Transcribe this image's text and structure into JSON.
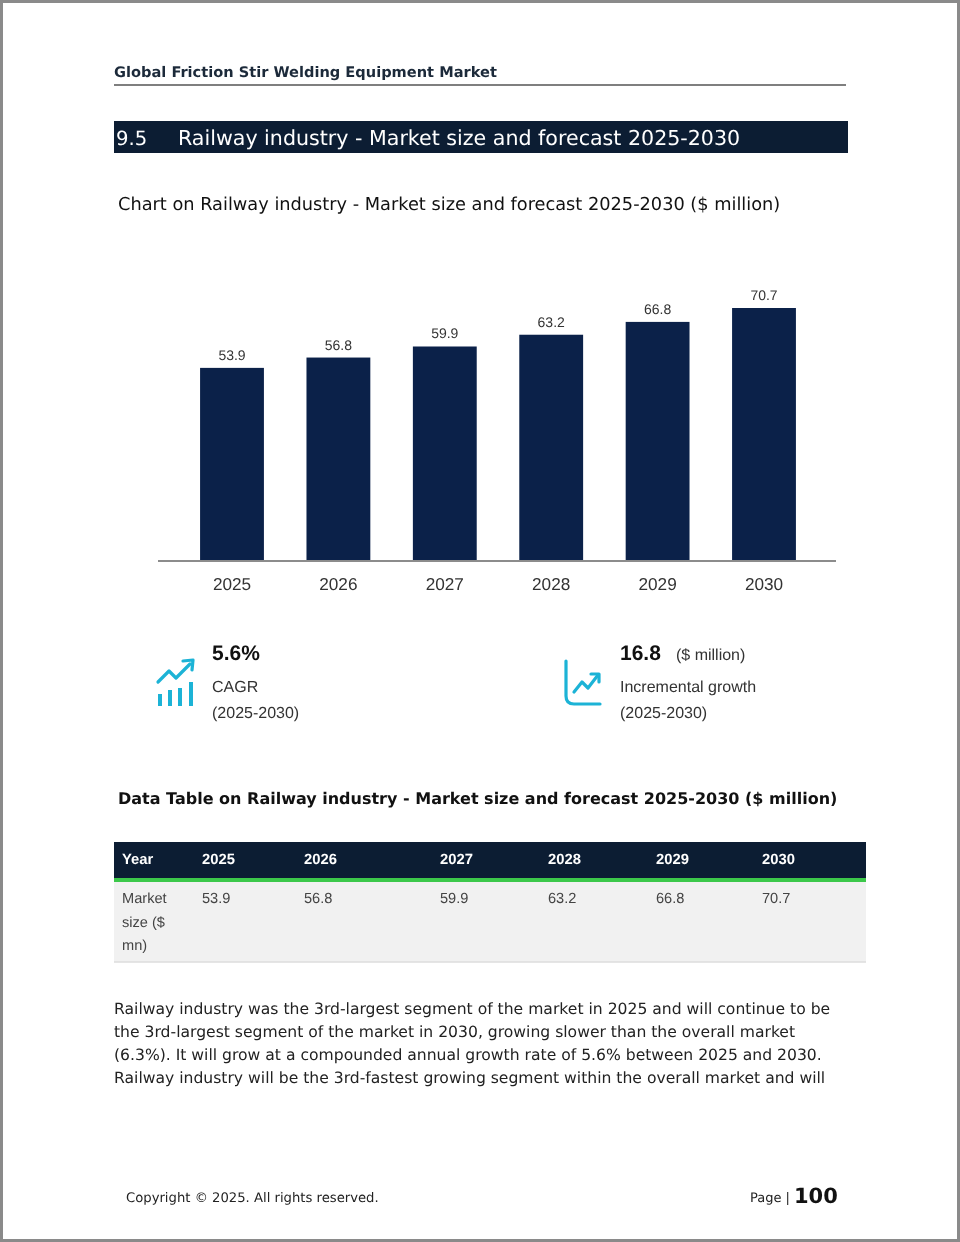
{
  "chart_data": {
    "type": "bar",
    "title": "Chart on Railway industry - Market size and forecast 2025-2030 ($ million)",
    "categories": [
      "2025",
      "2026",
      "2027",
      "2028",
      "2029",
      "2030"
    ],
    "values": [
      53.9,
      56.8,
      59.9,
      63.2,
      66.8,
      70.7
    ],
    "color": "#0b2149",
    "data_labels": true,
    "annotations": [
      "Global Friction Stir Welding Equipment Market",
      "9.5",
      "Railway industry - Market size and forecast 2025-2030",
      "5.6%",
      "CAGR",
      "(2025-2030)",
      "16.8",
      "($ million)",
      "Incremental growth",
      "(2025-2030)",
      "Data Table on Railway industry - Market size and forecast 2025-2030 ($ million)",
      "Year",
      "Market size ($ mn)",
      "53.9",
      "56.8",
      "59.9",
      "63.2",
      "66.8",
      "70.7",
      "Railway industry was the 3rd-largest segment of the market in 2025 and will continue to be the 3rd-largest segment of the market in 2030, growing slower than the overall market (6.3%). It will grow at a compounded annual growth rate of 5.6% between 2025 and 2030. Railway industry will be the 3rd-fastest growing segment within the overall market and will",
      "Copyright © 2025. All rights reserved.",
      "Page |",
      "100"
    ]
  }
}
